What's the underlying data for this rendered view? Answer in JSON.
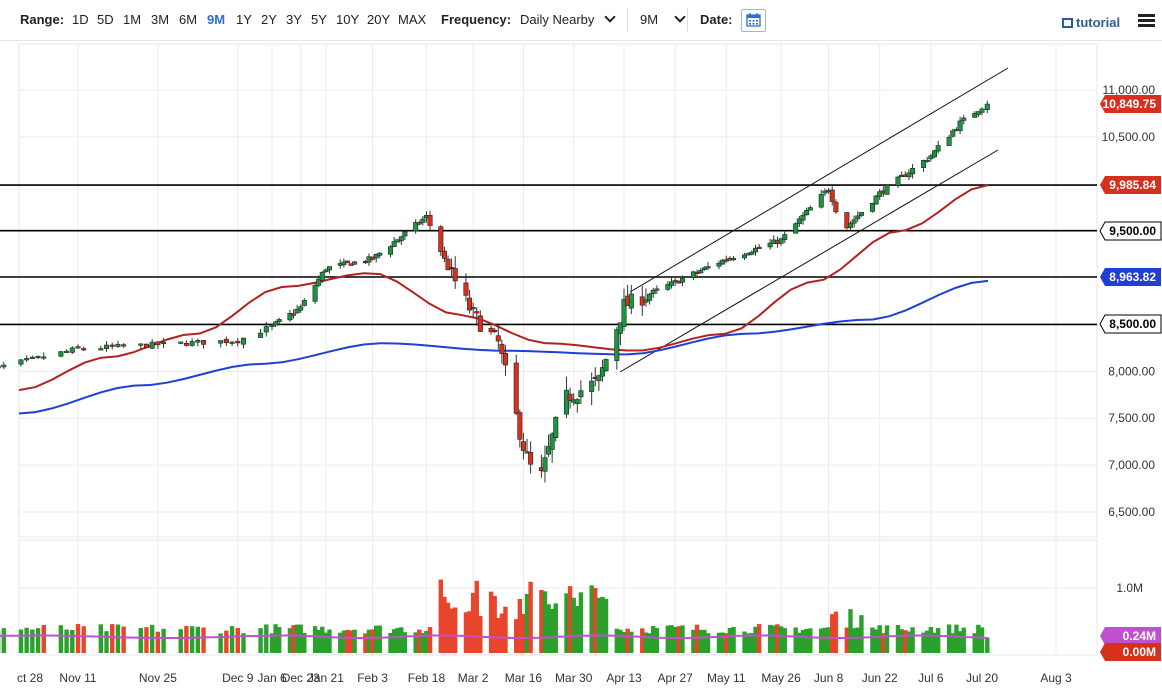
{
  "toolbar": {
    "range_label": "Range:",
    "ranges": [
      "1D",
      "5D",
      "1M",
      "3M",
      "6M",
      "9M",
      "1Y",
      "2Y",
      "3Y",
      "5Y",
      "10Y",
      "20Y",
      "MAX"
    ],
    "active_range": "9M",
    "frequency_label": "Frequency:",
    "frequency_value": "Daily Nearby",
    "period_value": "9M",
    "date_label": "Date:",
    "tutorial_label": "tutorial",
    "calendar_icon": "calendar-icon",
    "menu_icon": "hamburger-menu-icon"
  },
  "colors": {
    "up": "#1a9641",
    "down": "#d7301f",
    "ma_red": "#b22222",
    "ma_blue": "#1f3fd6",
    "volume_up": "#2ca02c",
    "volume_down": "#e8452c",
    "volume_ma": "#c050d0",
    "accent": "#2f6fd6"
  },
  "chart_data": {
    "type": "candlestick",
    "price_ylim": [
      6500,
      11000
    ],
    "price_ticks": [
      "11,000.00",
      "10,500.00",
      "8,000.00",
      "7,500.00",
      "7,000.00",
      "6,500.00"
    ],
    "tick_values": [
      11000,
      10500,
      8000,
      7500,
      7000,
      6500
    ],
    "last_price": 10849.75,
    "last_price_label": "10,849.75",
    "horizontal_levels": [
      {
        "value": 9985.84,
        "label": "9,985.84",
        "color": "#d7301f"
      },
      {
        "value": 9500,
        "label": "9,500.00",
        "color": "#000000"
      },
      {
        "value": 8963.82,
        "label": "8,963.82",
        "color": "#1f3fd6"
      },
      {
        "value": 8500,
        "label": "8,500.00",
        "color": "#000000"
      }
    ],
    "x_labels": [
      "ct 28",
      "Nov 11",
      "Nov 25",
      "Dec 9",
      "Dec 23",
      "Jan 6",
      "Jan 21",
      "Feb 3",
      "Feb 18",
      "Mar 2",
      "Mar 16",
      "Mar 30",
      "Apr 13",
      "Apr 27",
      "May 11",
      "May 26",
      "Jun 8",
      "Jun 22",
      "Jul 6",
      "Jul 20",
      "Aug 3"
    ],
    "close_anchors": [
      {
        "date": "Oct 23",
        "close": 7970
      },
      {
        "date": "Nov 11",
        "close": 8240
      },
      {
        "date": "Dec 9",
        "close": 8330
      },
      {
        "date": "Dec 23",
        "close": 8680
      },
      {
        "date": "Jan 21",
        "close": 9100
      },
      {
        "date": "Feb 3",
        "close": 9200
      },
      {
        "date": "Feb 18",
        "close": 9650
      },
      {
        "date": "Feb 24",
        "close": 9100
      },
      {
        "date": "Mar 2",
        "close": 8600
      },
      {
        "date": "Mar 9",
        "close": 8300
      },
      {
        "date": "Mar 16",
        "close": 7200
      },
      {
        "date": "Mar 20",
        "close": 6750
      },
      {
        "date": "Mar 27",
        "close": 7700
      },
      {
        "date": "Apr 6",
        "close": 7900
      },
      {
        "date": "Apr 13",
        "close": 8700
      },
      {
        "date": "Apr 27",
        "close": 8950
      },
      {
        "date": "May 11",
        "close": 9200
      },
      {
        "date": "May 26",
        "close": 9400
      },
      {
        "date": "Jun 8",
        "close": 9950
      },
      {
        "date": "Jun 12",
        "close": 9500
      },
      {
        "date": "Jun 22",
        "close": 9900
      },
      {
        "date": "Jul 6",
        "close": 10300
      },
      {
        "date": "Jul 14",
        "close": 10650
      },
      {
        "date": "Jul 21",
        "close": 10849.75
      }
    ],
    "moving_average_red": [
      7800,
      8150,
      8400,
      8900,
      9050,
      8600,
      8300,
      8220,
      8400,
      8950,
      9500,
      9985.84
    ],
    "moving_average_blue": [
      7550,
      7850,
      8080,
      8300,
      8220,
      8180,
      8400,
      8550,
      8963.82
    ],
    "volume_ylim": [
      0,
      1300000
    ],
    "volume_ticks": [
      "1.0M"
    ],
    "volume_tick_values": [
      1000000
    ],
    "volume_last": 240000,
    "volume_last_label": "0.24M",
    "volume_second_label": "0.00M",
    "grid": true
  }
}
